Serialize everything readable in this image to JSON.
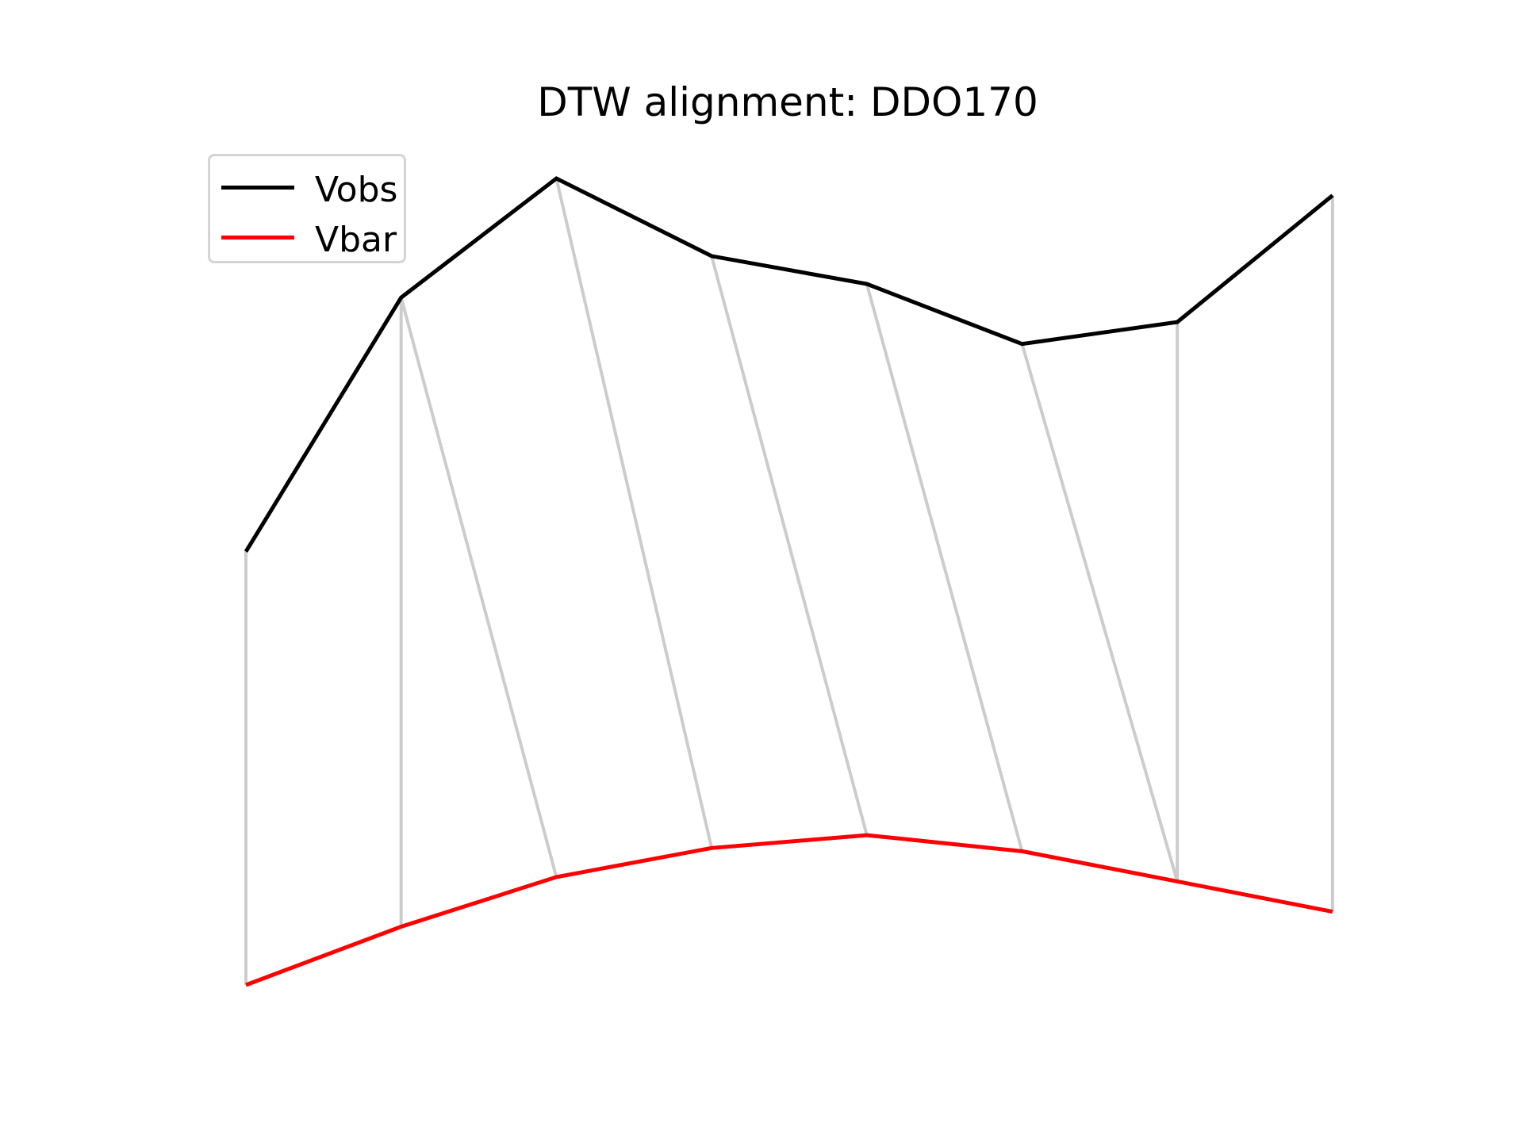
{
  "chart_data": {
    "type": "line",
    "title": "DTW alignment: DDO170",
    "xlabel": "",
    "ylabel": "",
    "axes_visible": false,
    "grid": false,
    "legend_position": "upper-left",
    "x": [
      0,
      1,
      2,
      3,
      4,
      5,
      6,
      7
    ],
    "series": [
      {
        "name": "Vobs",
        "color": "#000000",
        "values": [
          0.875,
          2.057,
          2.611,
          2.25,
          2.12,
          1.841,
          1.943,
          2.532
        ]
      },
      {
        "name": "Vbar",
        "color": "#ff0000",
        "values": [
          -1.141,
          -0.87,
          -0.639,
          -0.504,
          -0.444,
          -0.519,
          -0.659,
          -0.8
        ]
      }
    ],
    "alignment": {
      "color": "#cccccc",
      "pairs": [
        [
          0,
          0
        ],
        [
          1,
          1
        ],
        [
          1,
          2
        ],
        [
          2,
          3
        ],
        [
          3,
          4
        ],
        [
          4,
          5
        ],
        [
          5,
          6
        ],
        [
          6,
          6
        ],
        [
          7,
          7
        ]
      ]
    }
  }
}
